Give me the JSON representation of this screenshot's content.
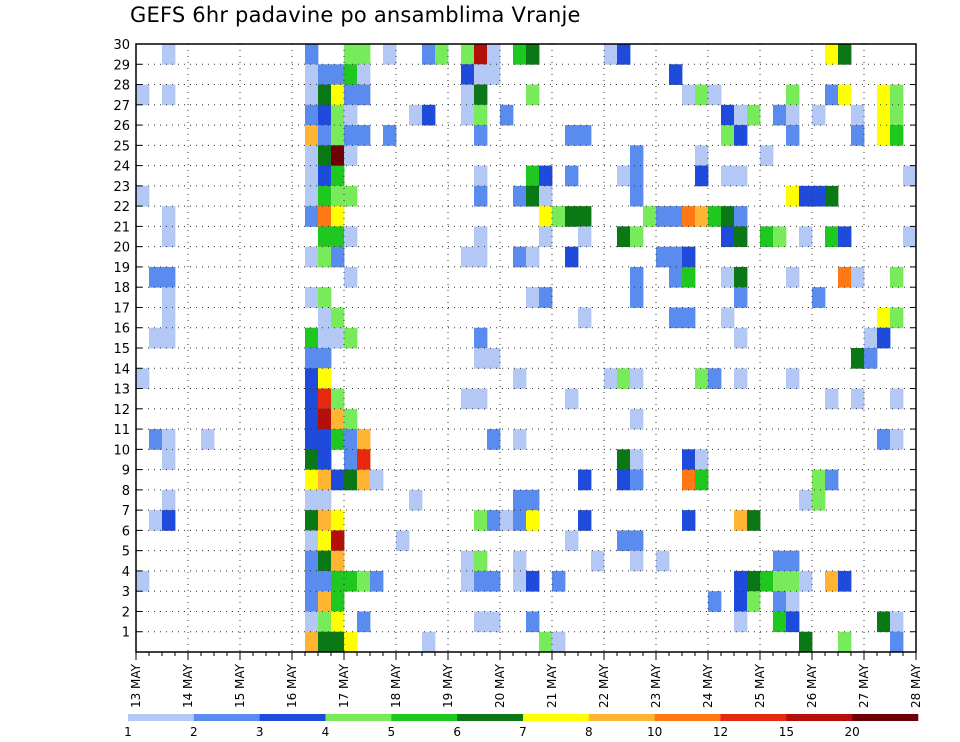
{
  "title": "GEFS 6hr padavine po ansamblima Vranje",
  "chart_data": {
    "type": "heatmap",
    "title": "GEFS 6hr padavine po ansamblima Vranje",
    "x_tick_labels": [
      "13 MAY",
      "14 MAY",
      "15 MAY",
      "16 MAY",
      "17 MAY",
      "18 MAY",
      "19 MAY",
      "20 MAY",
      "21 MAY",
      "22 MAY",
      "23 MAY",
      "24 MAY",
      "25 MAY",
      "26 MAY",
      "27 MAY",
      "28 MAY"
    ],
    "y_tick_labels": [
      "1",
      "2",
      "3",
      "4",
      "5",
      "6",
      "7",
      "8",
      "9",
      "10",
      "11",
      "12",
      "13",
      "14",
      "15",
      "16",
      "17",
      "18",
      "19",
      "20",
      "21",
      "22",
      "23",
      "24",
      "25",
      "26",
      "27",
      "28",
      "29",
      "30"
    ],
    "ylim": [
      0,
      30
    ],
    "time_steps": 60,
    "grid": "dotted",
    "colorbar": {
      "levels": [
        "1",
        "2",
        "3",
        "4",
        "5",
        "6",
        "7",
        "8",
        "10",
        "12",
        "15",
        "20"
      ],
      "colors": [
        "#b4c8f5",
        "#5a8cf0",
        "#1e4bdc",
        "#78eb5a",
        "#1ec81e",
        "#0a7814",
        "#ffff00",
        "#ffb432",
        "#ff7814",
        "#e6280f",
        "#b40f0a",
        "#6e0005"
      ]
    },
    "cells": [
      [
        30,
        2,
        1
      ],
      [
        30,
        13,
        2
      ],
      [
        30,
        16,
        4
      ],
      [
        30,
        17,
        4
      ],
      [
        30,
        19,
        1
      ],
      [
        30,
        22,
        2
      ],
      [
        30,
        23,
        4
      ],
      [
        30,
        25,
        4
      ],
      [
        30,
        26,
        11
      ],
      [
        30,
        27,
        1
      ],
      [
        30,
        29,
        5
      ],
      [
        30,
        30,
        6
      ],
      [
        30,
        36,
        1
      ],
      [
        30,
        37,
        3
      ],
      [
        30,
        53,
        7
      ],
      [
        30,
        54,
        6
      ],
      [
        29,
        13,
        1
      ],
      [
        29,
        14,
        2
      ],
      [
        29,
        15,
        2
      ],
      [
        29,
        16,
        5
      ],
      [
        29,
        17,
        1
      ],
      [
        29,
        25,
        3
      ],
      [
        29,
        26,
        1
      ],
      [
        29,
        27,
        1
      ],
      [
        29,
        41,
        3
      ],
      [
        28,
        0,
        1
      ],
      [
        28,
        2,
        1
      ],
      [
        28,
        13,
        1
      ],
      [
        28,
        14,
        6
      ],
      [
        28,
        15,
        7
      ],
      [
        28,
        16,
        2
      ],
      [
        28,
        17,
        2
      ],
      [
        28,
        25,
        1
      ],
      [
        28,
        26,
        6
      ],
      [
        28,
        30,
        4
      ],
      [
        28,
        42,
        1
      ],
      [
        28,
        43,
        4
      ],
      [
        28,
        44,
        1
      ],
      [
        28,
        50,
        4
      ],
      [
        28,
        53,
        2
      ],
      [
        28,
        54,
        7
      ],
      [
        28,
        57,
        7
      ],
      [
        28,
        58,
        4
      ],
      [
        27,
        13,
        2
      ],
      [
        27,
        14,
        3
      ],
      [
        27,
        15,
        4
      ],
      [
        27,
        16,
        1
      ],
      [
        27,
        21,
        1
      ],
      [
        27,
        22,
        3
      ],
      [
        27,
        25,
        1
      ],
      [
        27,
        26,
        4
      ],
      [
        27,
        28,
        2
      ],
      [
        27,
        45,
        3
      ],
      [
        27,
        46,
        1
      ],
      [
        27,
        47,
        4
      ],
      [
        27,
        49,
        2
      ],
      [
        27,
        50,
        1
      ],
      [
        27,
        52,
        1
      ],
      [
        27,
        55,
        1
      ],
      [
        27,
        57,
        7
      ],
      [
        27,
        58,
        4
      ],
      [
        26,
        13,
        8
      ],
      [
        26,
        14,
        2
      ],
      [
        26,
        15,
        4
      ],
      [
        26,
        16,
        2
      ],
      [
        26,
        17,
        2
      ],
      [
        26,
        19,
        2
      ],
      [
        26,
        26,
        2
      ],
      [
        26,
        33,
        2
      ],
      [
        26,
        34,
        2
      ],
      [
        26,
        45,
        4
      ],
      [
        26,
        46,
        3
      ],
      [
        26,
        50,
        2
      ],
      [
        26,
        55,
        2
      ],
      [
        26,
        57,
        7
      ],
      [
        26,
        58,
        5
      ],
      [
        25,
        13,
        1
      ],
      [
        25,
        14,
        6
      ],
      [
        25,
        15,
        12
      ],
      [
        25,
        16,
        1
      ],
      [
        25,
        38,
        2
      ],
      [
        25,
        43,
        1
      ],
      [
        25,
        48,
        1
      ],
      [
        24,
        13,
        1
      ],
      [
        24,
        14,
        3
      ],
      [
        24,
        15,
        5
      ],
      [
        24,
        26,
        1
      ],
      [
        24,
        30,
        5
      ],
      [
        24,
        31,
        3
      ],
      [
        24,
        33,
        2
      ],
      [
        24,
        37,
        1
      ],
      [
        24,
        38,
        2
      ],
      [
        24,
        43,
        3
      ],
      [
        24,
        45,
        1
      ],
      [
        24,
        46,
        1
      ],
      [
        24,
        59,
        1
      ],
      [
        23,
        0,
        1
      ],
      [
        23,
        13,
        1
      ],
      [
        23,
        14,
        5
      ],
      [
        23,
        15,
        4
      ],
      [
        23,
        16,
        4
      ],
      [
        23,
        26,
        2
      ],
      [
        23,
        29,
        2
      ],
      [
        23,
        30,
        6
      ],
      [
        23,
        31,
        1
      ],
      [
        23,
        38,
        2
      ],
      [
        23,
        50,
        7
      ],
      [
        23,
        51,
        3
      ],
      [
        23,
        52,
        3
      ],
      [
        23,
        53,
        6
      ],
      [
        22,
        2,
        1
      ],
      [
        22,
        13,
        2
      ],
      [
        22,
        14,
        9
      ],
      [
        22,
        15,
        7
      ],
      [
        22,
        31,
        7
      ],
      [
        22,
        32,
        4
      ],
      [
        22,
        33,
        6
      ],
      [
        22,
        34,
        6
      ],
      [
        22,
        39,
        4
      ],
      [
        22,
        40,
        2
      ],
      [
        22,
        41,
        2
      ],
      [
        22,
        42,
        9
      ],
      [
        22,
        43,
        8
      ],
      [
        22,
        44,
        5
      ],
      [
        22,
        45,
        6
      ],
      [
        22,
        46,
        2
      ],
      [
        21,
        2,
        1
      ],
      [
        21,
        14,
        5
      ],
      [
        21,
        15,
        5
      ],
      [
        21,
        16,
        1
      ],
      [
        21,
        26,
        1
      ],
      [
        21,
        31,
        1
      ],
      [
        21,
        34,
        1
      ],
      [
        21,
        37,
        6
      ],
      [
        21,
        38,
        4
      ],
      [
        21,
        45,
        3
      ],
      [
        21,
        46,
        6
      ],
      [
        21,
        48,
        5
      ],
      [
        21,
        49,
        4
      ],
      [
        21,
        51,
        1
      ],
      [
        21,
        53,
        5
      ],
      [
        21,
        54,
        3
      ],
      [
        21,
        59,
        1
      ],
      [
        20,
        13,
        1
      ],
      [
        20,
        14,
        4
      ],
      [
        20,
        15,
        2
      ],
      [
        20,
        25,
        1
      ],
      [
        20,
        26,
        1
      ],
      [
        20,
        29,
        2
      ],
      [
        20,
        30,
        1
      ],
      [
        20,
        33,
        3
      ],
      [
        20,
        40,
        2
      ],
      [
        20,
        41,
        2
      ],
      [
        20,
        42,
        3
      ],
      [
        19,
        1,
        2
      ],
      [
        19,
        2,
        2
      ],
      [
        19,
        16,
        1
      ],
      [
        19,
        38,
        2
      ],
      [
        19,
        41,
        2
      ],
      [
        19,
        42,
        5
      ],
      [
        19,
        45,
        1
      ],
      [
        19,
        46,
        6
      ],
      [
        19,
        50,
        1
      ],
      [
        19,
        54,
        9
      ],
      [
        19,
        55,
        1
      ],
      [
        19,
        58,
        4
      ],
      [
        18,
        2,
        1
      ],
      [
        18,
        13,
        1
      ],
      [
        18,
        14,
        4
      ],
      [
        18,
        30,
        1
      ],
      [
        18,
        31,
        2
      ],
      [
        18,
        38,
        2
      ],
      [
        18,
        46,
        2
      ],
      [
        18,
        52,
        2
      ],
      [
        17,
        2,
        1
      ],
      [
        17,
        14,
        1
      ],
      [
        17,
        15,
        4
      ],
      [
        17,
        34,
        1
      ],
      [
        17,
        41,
        2
      ],
      [
        17,
        42,
        2
      ],
      [
        17,
        45,
        1
      ],
      [
        17,
        57,
        7
      ],
      [
        17,
        58,
        4
      ],
      [
        16,
        1,
        1
      ],
      [
        16,
        2,
        1
      ],
      [
        16,
        13,
        5
      ],
      [
        16,
        14,
        1
      ],
      [
        16,
        15,
        1
      ],
      [
        16,
        16,
        4
      ],
      [
        16,
        26,
        2
      ],
      [
        16,
        46,
        1
      ],
      [
        16,
        56,
        1
      ],
      [
        16,
        57,
        3
      ],
      [
        15,
        13,
        2
      ],
      [
        15,
        14,
        2
      ],
      [
        15,
        26,
        1
      ],
      [
        15,
        27,
        1
      ],
      [
        15,
        55,
        6
      ],
      [
        15,
        56,
        2
      ],
      [
        14,
        0,
        1
      ],
      [
        14,
        13,
        3
      ],
      [
        14,
        14,
        7
      ],
      [
        14,
        29,
        1
      ],
      [
        14,
        36,
        1
      ],
      [
        14,
        37,
        4
      ],
      [
        14,
        38,
        1
      ],
      [
        14,
        43,
        4
      ],
      [
        14,
        44,
        2
      ],
      [
        14,
        46,
        1
      ],
      [
        14,
        50,
        1
      ],
      [
        13,
        13,
        3
      ],
      [
        13,
        14,
        10
      ],
      [
        13,
        15,
        4
      ],
      [
        13,
        25,
        1
      ],
      [
        13,
        26,
        1
      ],
      [
        13,
        33,
        1
      ],
      [
        13,
        53,
        1
      ],
      [
        13,
        55,
        1
      ],
      [
        13,
        58,
        1
      ],
      [
        12,
        13,
        3
      ],
      [
        12,
        14,
        11
      ],
      [
        12,
        15,
        8
      ],
      [
        12,
        16,
        4
      ],
      [
        12,
        38,
        1
      ],
      [
        11,
        1,
        2
      ],
      [
        11,
        2,
        1
      ],
      [
        11,
        5,
        1
      ],
      [
        11,
        13,
        3
      ],
      [
        11,
        14,
        3
      ],
      [
        11,
        15,
        5
      ],
      [
        11,
        16,
        2
      ],
      [
        11,
        17,
        8
      ],
      [
        11,
        27,
        2
      ],
      [
        11,
        29,
        1
      ],
      [
        11,
        57,
        2
      ],
      [
        11,
        58,
        1
      ],
      [
        10,
        2,
        1
      ],
      [
        10,
        13,
        6
      ],
      [
        10,
        14,
        3
      ],
      [
        10,
        16,
        2
      ],
      [
        10,
        17,
        10
      ],
      [
        10,
        37,
        6
      ],
      [
        10,
        38,
        1
      ],
      [
        10,
        42,
        3
      ],
      [
        10,
        43,
        1
      ],
      [
        9,
        13,
        7
      ],
      [
        9,
        14,
        8
      ],
      [
        9,
        15,
        3
      ],
      [
        9,
        16,
        6
      ],
      [
        9,
        17,
        8
      ],
      [
        9,
        18,
        1
      ],
      [
        9,
        34,
        3
      ],
      [
        9,
        37,
        3
      ],
      [
        9,
        38,
        2
      ],
      [
        9,
        42,
        9
      ],
      [
        9,
        43,
        5
      ],
      [
        9,
        52,
        4
      ],
      [
        9,
        53,
        2
      ],
      [
        8,
        2,
        1
      ],
      [
        8,
        13,
        1
      ],
      [
        8,
        14,
        1
      ],
      [
        8,
        21,
        1
      ],
      [
        8,
        29,
        2
      ],
      [
        8,
        30,
        2
      ],
      [
        8,
        51,
        1
      ],
      [
        8,
        52,
        4
      ],
      [
        7,
        1,
        1
      ],
      [
        7,
        2,
        3
      ],
      [
        7,
        13,
        6
      ],
      [
        7,
        14,
        8
      ],
      [
        7,
        15,
        7
      ],
      [
        7,
        26,
        4
      ],
      [
        7,
        27,
        2
      ],
      [
        7,
        28,
        1
      ],
      [
        7,
        29,
        2
      ],
      [
        7,
        30,
        7
      ],
      [
        7,
        34,
        3
      ],
      [
        7,
        42,
        3
      ],
      [
        7,
        46,
        8
      ],
      [
        7,
        47,
        6
      ],
      [
        6,
        13,
        1
      ],
      [
        6,
        14,
        7
      ],
      [
        6,
        15,
        11
      ],
      [
        6,
        20,
        1
      ],
      [
        6,
        33,
        1
      ],
      [
        6,
        37,
        2
      ],
      [
        6,
        38,
        2
      ],
      [
        5,
        13,
        2
      ],
      [
        5,
        14,
        6
      ],
      [
        5,
        15,
        8
      ],
      [
        5,
        25,
        1
      ],
      [
        5,
        26,
        4
      ],
      [
        5,
        29,
        1
      ],
      [
        5,
        35,
        1
      ],
      [
        5,
        38,
        1
      ],
      [
        5,
        40,
        1
      ],
      [
        5,
        49,
        2
      ],
      [
        5,
        50,
        2
      ],
      [
        4,
        0,
        1
      ],
      [
        4,
        13,
        2
      ],
      [
        4,
        14,
        2
      ],
      [
        4,
        15,
        5
      ],
      [
        4,
        16,
        5
      ],
      [
        4,
        17,
        4
      ],
      [
        4,
        18,
        2
      ],
      [
        4,
        25,
        1
      ],
      [
        4,
        26,
        2
      ],
      [
        4,
        27,
        2
      ],
      [
        4,
        29,
        1
      ],
      [
        4,
        30,
        3
      ],
      [
        4,
        32,
        2
      ],
      [
        4,
        46,
        3
      ],
      [
        4,
        47,
        6
      ],
      [
        4,
        48,
        5
      ],
      [
        4,
        49,
        4
      ],
      [
        4,
        50,
        4
      ],
      [
        4,
        51,
        1
      ],
      [
        4,
        53,
        8
      ],
      [
        4,
        54,
        3
      ],
      [
        3,
        13,
        2
      ],
      [
        3,
        14,
        8
      ],
      [
        3,
        15,
        5
      ],
      [
        3,
        44,
        2
      ],
      [
        3,
        46,
        3
      ],
      [
        3,
        47,
        4
      ],
      [
        3,
        49,
        2
      ],
      [
        3,
        50,
        1
      ],
      [
        2,
        13,
        1
      ],
      [
        2,
        14,
        4
      ],
      [
        2,
        15,
        7
      ],
      [
        2,
        17,
        2
      ],
      [
        2,
        26,
        1
      ],
      [
        2,
        27,
        1
      ],
      [
        2,
        30,
        2
      ],
      [
        2,
        46,
        1
      ],
      [
        2,
        49,
        5
      ],
      [
        2,
        50,
        3
      ],
      [
        2,
        57,
        6
      ],
      [
        2,
        58,
        1
      ],
      [
        1,
        13,
        8
      ],
      [
        1,
        14,
        6
      ],
      [
        1,
        15,
        6
      ],
      [
        1,
        16,
        7
      ],
      [
        1,
        22,
        1
      ],
      [
        1,
        31,
        4
      ],
      [
        1,
        32,
        1
      ],
      [
        1,
        51,
        6
      ],
      [
        1,
        54,
        4
      ],
      [
        1,
        58,
        2
      ]
    ]
  }
}
